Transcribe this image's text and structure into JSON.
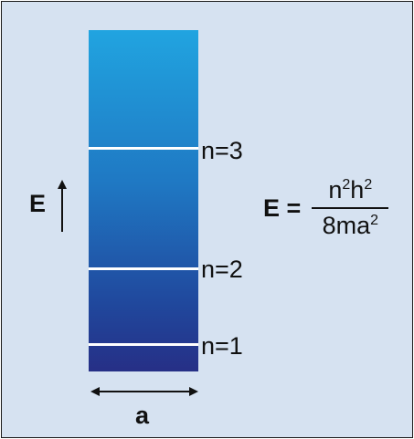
{
  "energy_axis": {
    "label": "E"
  },
  "width_label": "a",
  "levels": [
    {
      "label": "n=3"
    },
    {
      "label": "n=2"
    },
    {
      "label": "n=1"
    }
  ],
  "formula": {
    "lhs": "E =",
    "numerator": {
      "n": "n",
      "n_exp": "2",
      "h": "h",
      "h_exp": "2"
    },
    "denominator": {
      "prefix": "8ma",
      "a_exp": "2"
    }
  },
  "colors": {
    "background": "#d6e2f1",
    "well_top": "#21a4e0",
    "well_bottom": "#262f86",
    "level_line": "#ffffff"
  }
}
